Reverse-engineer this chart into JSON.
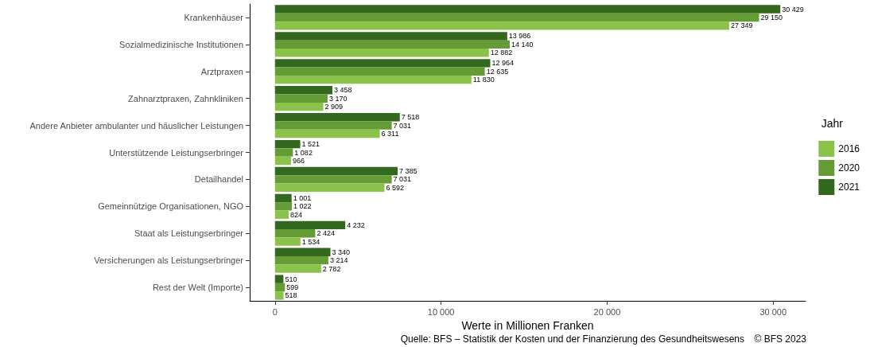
{
  "chart_data": {
    "type": "bar",
    "orientation": "horizontal",
    "xlabel": "Werte in Millionen Franken",
    "legend_title": "Jahr",
    "legend": "right",
    "grid": false,
    "categories": [
      "Krankenhäuser",
      "Sozialmedizinische Institutionen",
      "Arztpraxen",
      "Zahnarztpraxen, Zahnkliniken",
      "Andere Anbieter ambulanter und häuslicher Leistungen",
      "Unterstützende Leistungserbringer",
      "Detailhandel",
      "Gemeinnützige Organisationen, NGO",
      "Staat als Leistungserbringer",
      "Versicherungen als Leistungserbringer",
      "Rest der Welt (Importe)"
    ],
    "xlim": [
      -1521,
      31950
    ],
    "xticks": [
      {
        "value": 0,
        "label": "0"
      },
      {
        "value": 10000,
        "label": "10 000"
      },
      {
        "value": 20000,
        "label": "20 000"
      },
      {
        "value": 30000,
        "label": "30 000"
      }
    ],
    "series": [
      {
        "name": "2016",
        "color": "#8bc34a",
        "values": [
          27349,
          12882,
          11830,
          2909,
          6311,
          966,
          6592,
          824,
          1534,
          2782,
          518
        ],
        "value_labels": [
          "27 349",
          "12 882",
          "11 830",
          "2 909",
          "6 311",
          "966",
          "6 592",
          "824",
          "1 534",
          "2 782",
          "518"
        ]
      },
      {
        "name": "2020",
        "color": "#669c35",
        "values": [
          29150,
          14140,
          12635,
          3170,
          7031,
          1082,
          7031,
          1022,
          2424,
          3214,
          599
        ],
        "value_labels": [
          "29 150",
          "14 140",
          "12 635",
          "3 170",
          "7 031",
          "1 082",
          "7 031",
          "1 022",
          "2 424",
          "3 214",
          "599"
        ]
      },
      {
        "name": "2021",
        "color": "#33691e",
        "values": [
          30429,
          13986,
          12964,
          3458,
          7518,
          1521,
          7385,
          1001,
          4232,
          3340,
          510
        ],
        "value_labels": [
          "30 429",
          "13 986",
          "12 964",
          "3 458",
          "7 518",
          "1 521",
          "7 385",
          "1 001",
          "4 232",
          "3 340",
          "510"
        ]
      }
    ],
    "annotations": [
      "Quelle: BFS – Statistik der Kosten und der Finanzierung des Gesundheitswesens",
      "© BFS 2023"
    ]
  }
}
